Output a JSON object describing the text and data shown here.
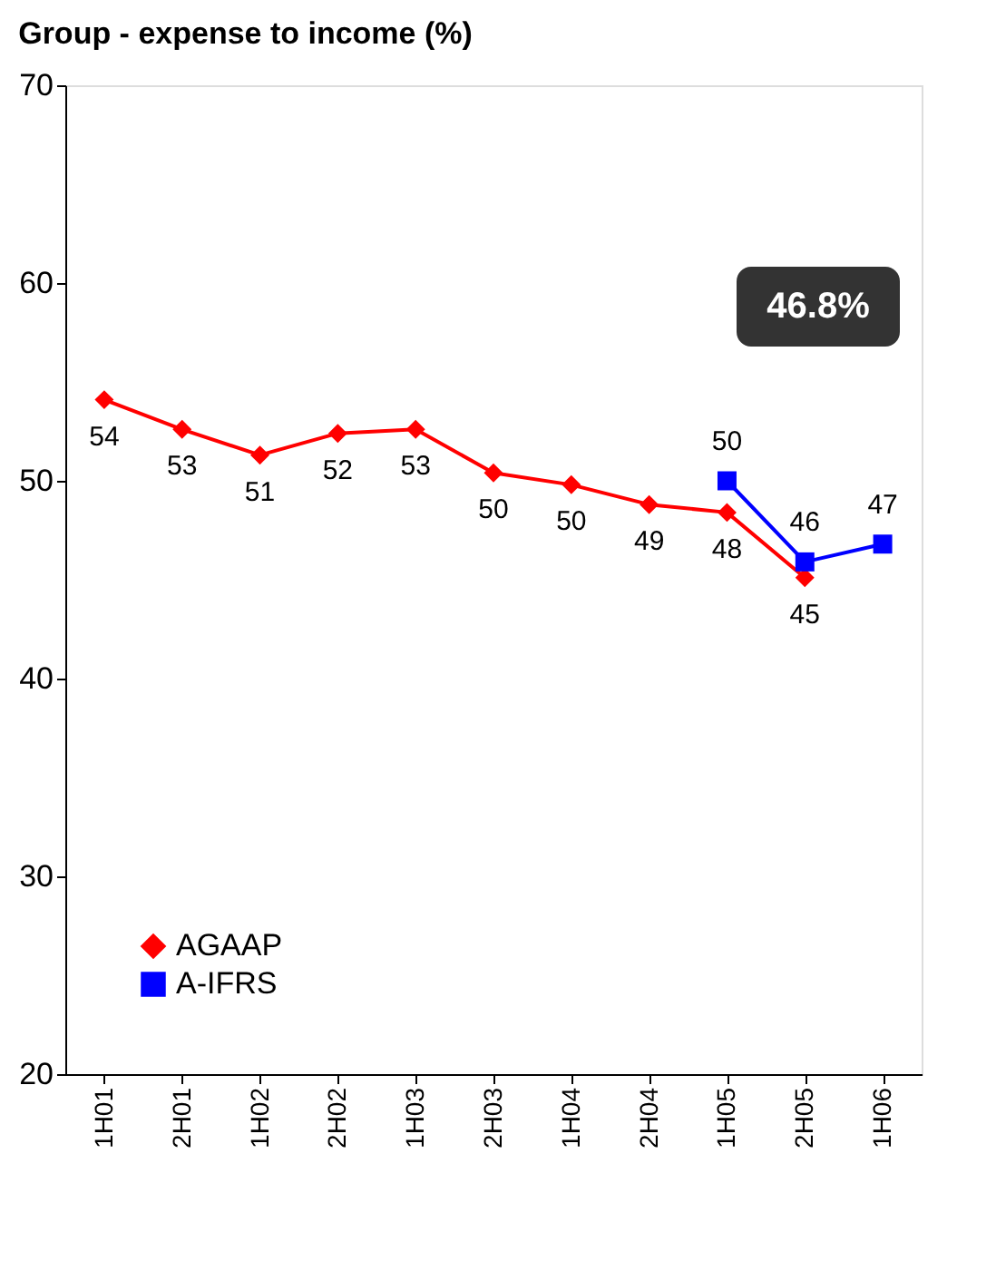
{
  "chart_data": {
    "type": "line",
    "title": "Group - expense to income (%)",
    "categories": [
      "1H01",
      "2H01",
      "1H02",
      "2H02",
      "1H03",
      "2H03",
      "1H04",
      "2H04",
      "1H05",
      "2H05",
      "1H06"
    ],
    "series": [
      {
        "name": "AGAAP",
        "color": "#ff0000",
        "marker": "diamond",
        "values": [
          54.1,
          52.6,
          51.3,
          52.4,
          52.6,
          50.4,
          49.8,
          48.8,
          48.4,
          45.1,
          null
        ],
        "value_labels": [
          "54",
          "53",
          "51",
          "52",
          "53",
          "50",
          "50",
          "49",
          "48",
          "45",
          null
        ]
      },
      {
        "name": "A-IFRS",
        "color": "#0000ff",
        "marker": "square",
        "values": [
          null,
          null,
          null,
          null,
          null,
          null,
          null,
          null,
          50.0,
          45.9,
          46.8
        ],
        "value_labels": [
          null,
          null,
          null,
          null,
          null,
          null,
          null,
          null,
          "50",
          "46",
          "47"
        ]
      }
    ],
    "ylim": [
      20,
      70
    ],
    "yticks": [
      20,
      30,
      40,
      50,
      60,
      70
    ],
    "grid": false,
    "legend": "bottom left",
    "line_style": "solid",
    "annotations": [
      "46.8%"
    ]
  }
}
